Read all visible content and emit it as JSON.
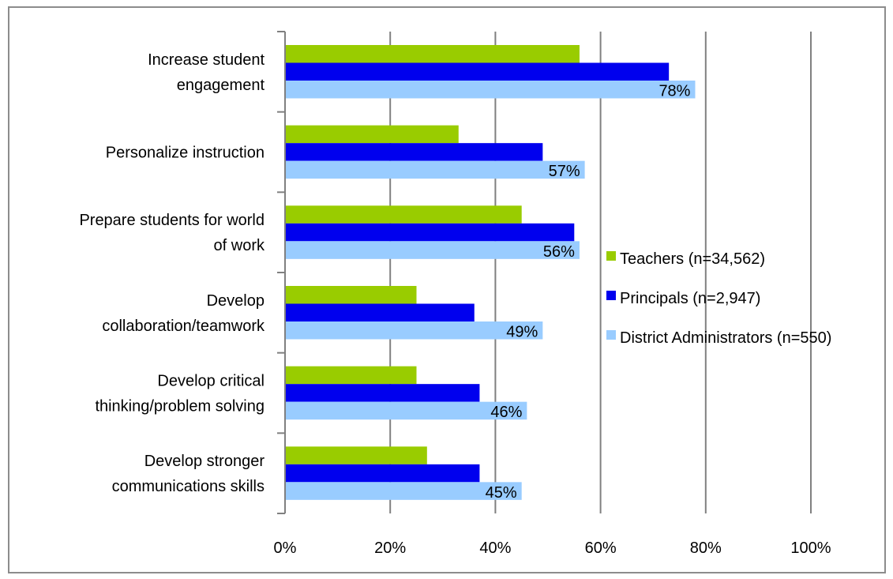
{
  "chart_data": {
    "type": "bar",
    "orientation": "horizontal",
    "categories": [
      [
        "Increase student",
        "engagement"
      ],
      [
        "Personalize instruction"
      ],
      [
        "Prepare students for world",
        "of work"
      ],
      [
        "Develop",
        "collaboration/teamwork"
      ],
      [
        "Develop critical",
        "thinking/problem solving"
      ],
      [
        "Develop stronger",
        "communications skills"
      ]
    ],
    "series": [
      {
        "name": "Teachers (n=34,562)",
        "color": "#99cc00",
        "values": [
          56,
          33,
          45,
          25,
          25,
          27
        ]
      },
      {
        "name": "Principals (n=2,947)",
        "color": "#0000ee",
        "values": [
          73,
          49,
          55,
          36,
          37,
          37
        ]
      },
      {
        "name": "District Administrators (n=550)",
        "color": "#99ccff",
        "values": [
          78,
          57,
          56,
          49,
          46,
          45
        ],
        "data_labels": [
          "78%",
          "57%",
          "56%",
          "49%",
          "46%",
          "45%"
        ]
      }
    ],
    "x_ticks": [
      "0%",
      "20%",
      "40%",
      "60%",
      "80%",
      "100%"
    ],
    "xlim": [
      0,
      100
    ],
    "grid": true,
    "legend_position": "right"
  }
}
